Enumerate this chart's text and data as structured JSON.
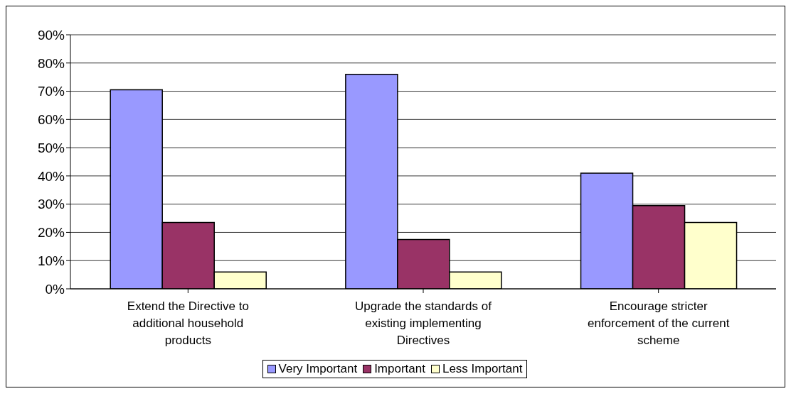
{
  "chart_data": {
    "type": "bar",
    "categories": [
      "Extend the Directive to additional household products",
      "Upgrade the standards of existing implementing Directives",
      "Encourage stricter enforcement of the current scheme"
    ],
    "series": [
      {
        "name": "Very Important",
        "color": "#9999ff",
        "values": [
          70.5,
          76,
          41
        ]
      },
      {
        "name": "Important",
        "color": "#993366",
        "values": [
          23.5,
          17.5,
          29.5
        ]
      },
      {
        "name": "Less Important",
        "color": "#ffffcc",
        "values": [
          6,
          6,
          23.5
        ]
      }
    ],
    "ylim": [
      0,
      90
    ],
    "yticks": [
      {
        "value": 0,
        "label": "0%"
      },
      {
        "value": 10,
        "label": "10%"
      },
      {
        "value": 20,
        "label": "20%"
      },
      {
        "value": 30,
        "label": "30%"
      },
      {
        "value": 40,
        "label": "40%"
      },
      {
        "value": 50,
        "label": "50%"
      },
      {
        "value": 60,
        "label": "60%"
      },
      {
        "value": 70,
        "label": "70%"
      },
      {
        "value": 80,
        "label": "80%"
      },
      {
        "value": 90,
        "label": "90%"
      }
    ],
    "grid": "y",
    "legend": "bottom"
  }
}
